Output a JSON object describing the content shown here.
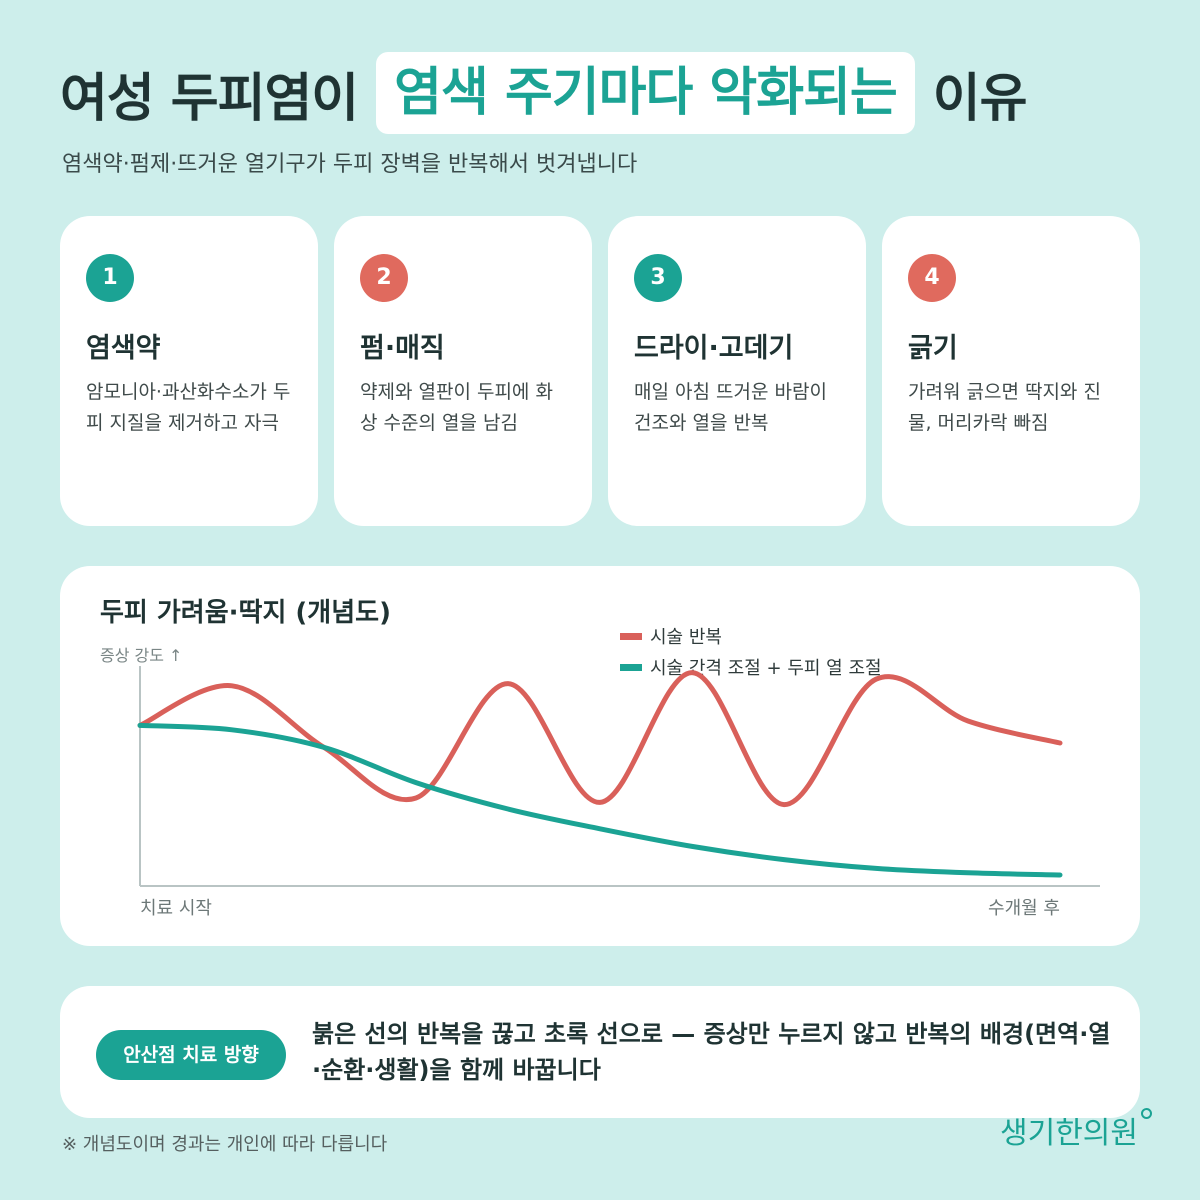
{
  "header": {
    "title_pre": "여성 두피염이",
    "title_highlight": "염색 주기마다 악화되는",
    "title_post": "이유",
    "subtitle": "염색약·펌제·뜨거운 열기구가 두피 장벽을 반복해서 벗겨냅니다"
  },
  "cards": [
    {
      "number": "1",
      "badge_color": "#1ba394",
      "title": "염색약",
      "desc": "암모니아·과산화수소가 두피 지질을 제거하고 자극"
    },
    {
      "number": "2",
      "badge_color": "#e06a5e",
      "title": "펌·매직",
      "desc": "약제와 열판이 두피에 화상 수준의 열을 남김"
    },
    {
      "number": "3",
      "badge_color": "#1ba394",
      "title": "드라이·고데기",
      "desc": "매일 아침 뜨거운 바람이 건조와 열을 반복"
    },
    {
      "number": "4",
      "badge_color": "#e06a5e",
      "title": "긁기",
      "desc": "가려워 긁으면 딱지와 진물, 머리카락 빠짐"
    }
  ],
  "chart_data": {
    "type": "line",
    "title": "두피 가려움·딱지 (개념도)",
    "ylabel": "증상 강도 ↑",
    "x_start_label": "치료 시작",
    "x_end_label": "수개월 후",
    "x": [
      0,
      10,
      20,
      30,
      40,
      50,
      60,
      70,
      80,
      90,
      100
    ],
    "ylim": [
      0,
      1
    ],
    "grid": false,
    "legend_position": "top",
    "series": [
      {
        "name": "시술 반복",
        "color": "#d9605a",
        "values": [
          0.73,
          0.91,
          0.63,
          0.4,
          0.92,
          0.38,
          0.97,
          0.37,
          0.94,
          0.75,
          0.65
        ]
      },
      {
        "name": "시술 간격 조절 + 두피 열 조절",
        "color": "#1ba394",
        "values": [
          0.73,
          0.71,
          0.63,
          0.47,
          0.35,
          0.26,
          0.18,
          0.12,
          0.08,
          0.06,
          0.05
        ]
      }
    ]
  },
  "note": {
    "pill": "안산점 치료 방향",
    "text": "붉은 선의 반복을 끊고 초록 선으로 — 증상만 누르지 않고 반복의 배경(면역·열·순환·생활)을 함께 바꿉니다"
  },
  "footnote": "※ 개념도이며 경과는 개인에 따라 다릅니다",
  "logo": "생기한의원"
}
